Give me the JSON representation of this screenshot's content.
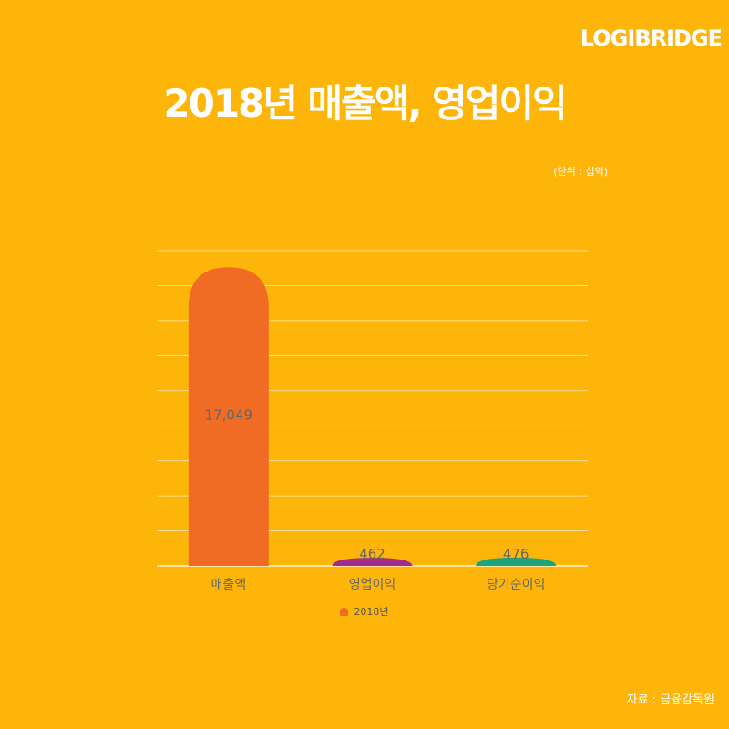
{
  "brand": "LOGIBRIDGE",
  "title": "2018년 매출액, 영업이익",
  "unit_note": "(단위 : 십억)",
  "source": "자료 : 금융감독원",
  "colors": {
    "background": "#FDB50A",
    "gridline": "#FFFFFF",
    "label_text": "#666666"
  },
  "chart_data": {
    "type": "bar",
    "categories": [
      "매출액",
      "영업이익",
      "당기순이익"
    ],
    "series": [
      {
        "name": "2018년",
        "values": [
          17049,
          462,
          476
        ],
        "data_labels": [
          "17,049",
          "462",
          "476"
        ],
        "colors": [
          "#F06B23",
          "#A22C8A",
          "#1BA57A"
        ]
      }
    ],
    "ylim": [
      0,
      18000
    ],
    "gridline_count": 9,
    "grid": true,
    "legend": "bottom",
    "y_ticks_shown": false
  }
}
